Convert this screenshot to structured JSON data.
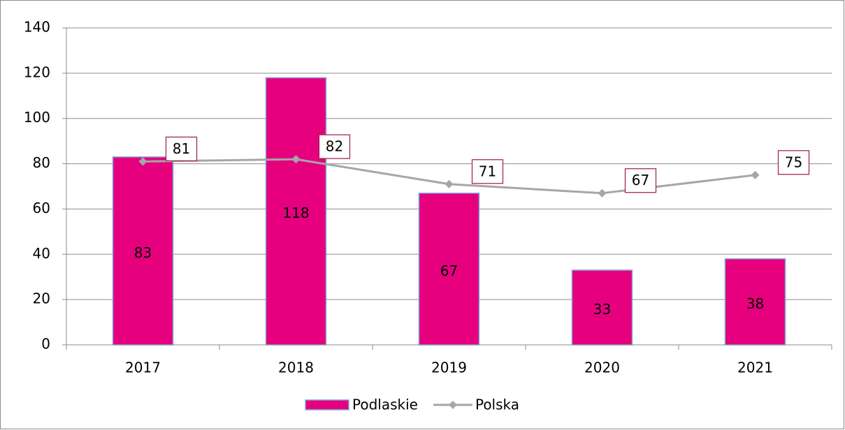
{
  "chart_data": {
    "type": "combo",
    "categories": [
      "2017",
      "2018",
      "2019",
      "2020",
      "2021"
    ],
    "series": [
      {
        "name": "Podlaskie",
        "type": "bar",
        "color": "#e6007e",
        "values": [
          83,
          118,
          67,
          33,
          38
        ]
      },
      {
        "name": "Polska",
        "type": "line",
        "color": "#a6a6a6",
        "values": [
          81,
          82,
          71,
          67,
          75
        ]
      }
    ],
    "ylim": [
      0,
      140
    ],
    "yticks": [
      0,
      20,
      40,
      60,
      80,
      100,
      120,
      140
    ],
    "grid": true,
    "legend": "bottom"
  }
}
